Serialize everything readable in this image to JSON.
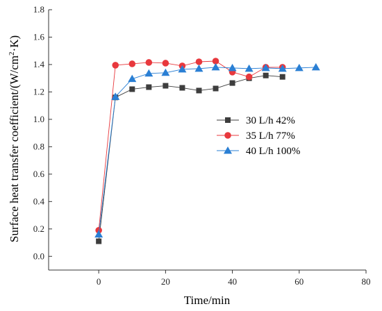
{
  "chart_data": {
    "type": "line",
    "title": "",
    "xlabel": "Time/min",
    "ylabel_prefix": "Surface heat transfer coefficient/(W/cm",
    "ylabel_sup": "2",
    "ylabel_suffix": "·K)",
    "xlim": [
      -15,
      80
    ],
    "ylim": [
      -0.1,
      1.8
    ],
    "xticks": [
      0,
      20,
      40,
      60,
      80
    ],
    "yticks": [
      0.0,
      0.2,
      0.4,
      0.6,
      0.8,
      1.0,
      1.2,
      1.4,
      1.6,
      1.8
    ],
    "xtick_labels": [
      "0",
      "20",
      "40",
      "60",
      "80"
    ],
    "ytick_labels": [
      "0.0",
      "0.2",
      "0.4",
      "0.6",
      "0.8",
      "1.0",
      "1.2",
      "1.4",
      "1.6",
      "1.8"
    ],
    "grid": false,
    "legend_position": "right",
    "series": [
      {
        "name": "30 L/h 42%",
        "color": "#3d3d3d",
        "marker": "square",
        "x": [
          0,
          5,
          10,
          15,
          20,
          25,
          30,
          35,
          40,
          45,
          50,
          55
        ],
        "y": [
          0.11,
          1.16,
          1.22,
          1.235,
          1.245,
          1.23,
          1.21,
          1.225,
          1.265,
          1.3,
          1.32,
          1.31
        ]
      },
      {
        "name": "35 L/h 77%",
        "color": "#e8383d",
        "marker": "circle",
        "x": [
          0,
          5,
          10,
          15,
          20,
          25,
          30,
          35,
          40,
          45,
          50,
          55
        ],
        "y": [
          0.19,
          1.395,
          1.405,
          1.415,
          1.41,
          1.39,
          1.42,
          1.425,
          1.345,
          1.31,
          1.38,
          1.38
        ]
      },
      {
        "name": "40 L/h 100%",
        "color": "#2a7fd4",
        "marker": "triangle",
        "x": [
          0,
          5,
          10,
          15,
          20,
          25,
          30,
          35,
          40,
          45,
          50,
          55,
          60,
          65
        ],
        "y": [
          0.16,
          1.165,
          1.295,
          1.335,
          1.34,
          1.365,
          1.37,
          1.38,
          1.375,
          1.37,
          1.375,
          1.37,
          1.375,
          1.38
        ]
      }
    ]
  }
}
